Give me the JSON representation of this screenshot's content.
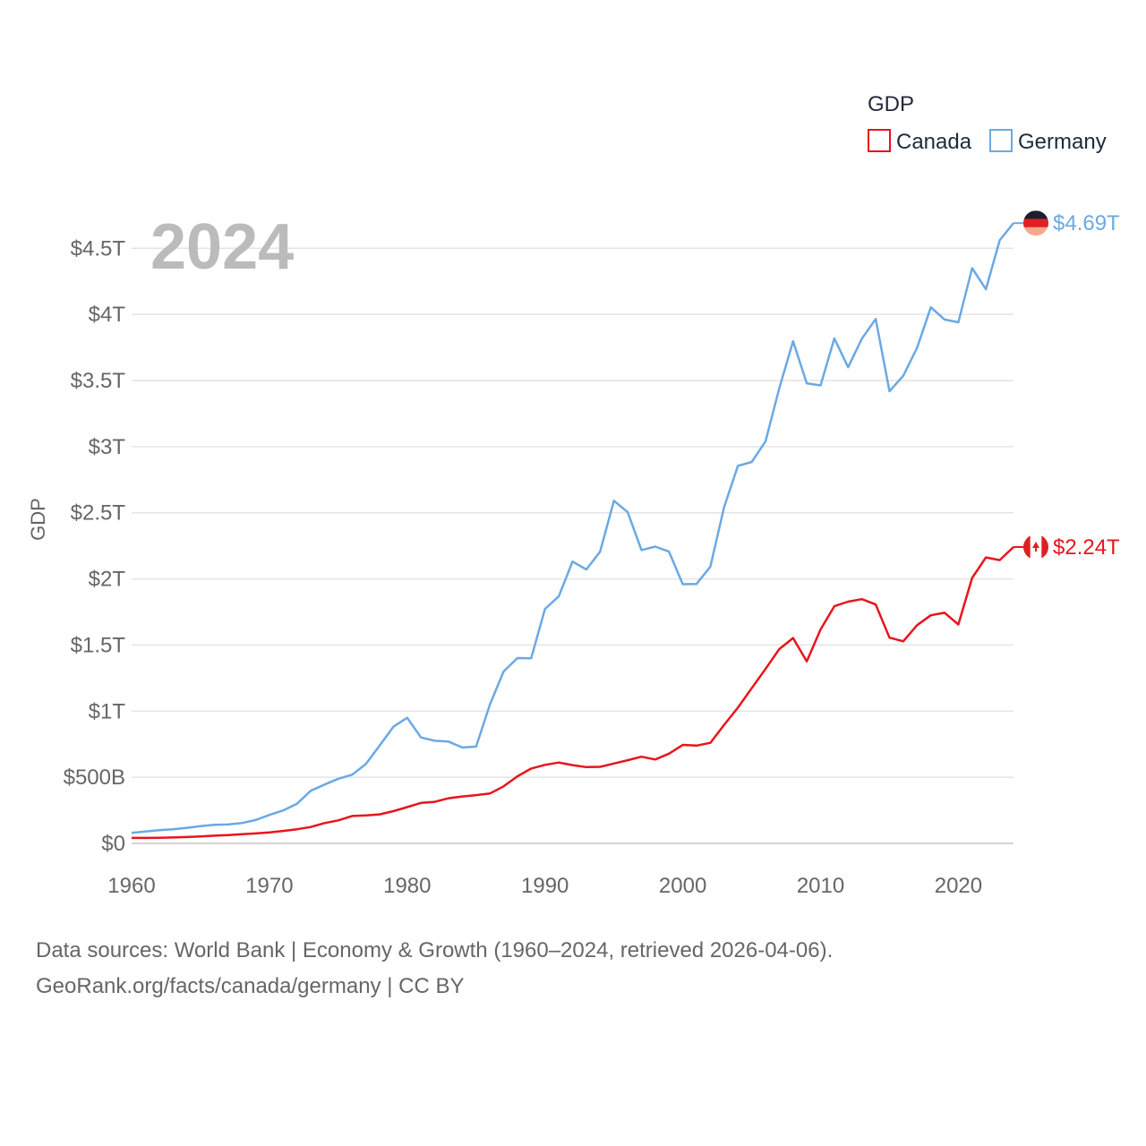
{
  "chart_data": {
    "type": "line",
    "title": "",
    "year_label": "2024",
    "xlabel": "",
    "ylabel": "GDP",
    "legend_title": "GDP",
    "legend_position": "top-right",
    "grid": true,
    "xlim": [
      1960,
      2024
    ],
    "ylim": [
      0,
      4.75
    ],
    "unit": "trillion USD",
    "x_ticks": [
      1960,
      1970,
      1980,
      1990,
      2000,
      2010,
      2020
    ],
    "x_tick_labels": [
      "1960",
      "1970",
      "1980",
      "1990",
      "2000",
      "2010",
      "2020"
    ],
    "y_ticks": [
      0,
      0.5,
      1,
      1.5,
      2,
      2.5,
      3,
      3.5,
      4,
      4.5
    ],
    "y_tick_labels": [
      "$0",
      "$500B",
      "$1T",
      "$1.5T",
      "$2T",
      "$2.5T",
      "$3T",
      "$3.5T",
      "$4T",
      "$4.5T"
    ],
    "x": [
      1960,
      1961,
      1962,
      1963,
      1964,
      1965,
      1966,
      1967,
      1968,
      1969,
      1970,
      1971,
      1972,
      1973,
      1974,
      1975,
      1976,
      1977,
      1978,
      1979,
      1980,
      1981,
      1982,
      1983,
      1984,
      1985,
      1986,
      1987,
      1988,
      1989,
      1990,
      1991,
      1992,
      1993,
      1994,
      1995,
      1996,
      1997,
      1998,
      1999,
      2000,
      2001,
      2002,
      2003,
      2004,
      2005,
      2006,
      2007,
      2008,
      2009,
      2010,
      2011,
      2012,
      2013,
      2014,
      2015,
      2016,
      2017,
      2018,
      2019,
      2020,
      2021,
      2022,
      2023,
      2024
    ],
    "series": [
      {
        "name": "Canada",
        "color": "#e8141b",
        "end_label": "$2.24T",
        "flag": "canada-flag",
        "values": [
          0.041,
          0.041,
          0.042,
          0.045,
          0.048,
          0.052,
          0.058,
          0.063,
          0.069,
          0.075,
          0.083,
          0.094,
          0.107,
          0.124,
          0.154,
          0.174,
          0.207,
          0.212,
          0.219,
          0.244,
          0.274,
          0.306,
          0.314,
          0.341,
          0.355,
          0.365,
          0.377,
          0.431,
          0.507,
          0.566,
          0.594,
          0.611,
          0.592,
          0.577,
          0.579,
          0.604,
          0.629,
          0.655,
          0.634,
          0.678,
          0.745,
          0.739,
          0.76,
          0.896,
          1.026,
          1.173,
          1.319,
          1.469,
          1.553,
          1.376,
          1.617,
          1.793,
          1.828,
          1.847,
          1.806,
          1.556,
          1.528,
          1.65,
          1.725,
          1.744,
          1.655,
          2.007,
          2.162,
          2.142,
          2.241
        ]
      },
      {
        "name": "Germany",
        "color": "#6ba9e3",
        "end_label": "$4.69T",
        "flag": "germany-flag",
        "values": [
          0.08,
          0.09,
          0.1,
          0.106,
          0.118,
          0.13,
          0.14,
          0.143,
          0.154,
          0.177,
          0.215,
          0.249,
          0.299,
          0.398,
          0.445,
          0.489,
          0.519,
          0.6,
          0.74,
          0.882,
          0.95,
          0.801,
          0.776,
          0.77,
          0.725,
          0.732,
          1.05,
          1.3,
          1.401,
          1.4,
          1.772,
          1.868,
          2.131,
          2.071,
          2.206,
          2.591,
          2.504,
          2.218,
          2.244,
          2.206,
          1.96,
          1.962,
          2.092,
          2.543,
          2.855,
          2.884,
          3.039,
          3.441,
          3.797,
          3.479,
          3.463,
          3.818,
          3.6,
          3.817,
          3.965,
          3.419,
          3.536,
          3.747,
          4.054,
          3.961,
          3.94,
          4.349,
          4.19,
          4.56,
          4.69
        ]
      }
    ]
  },
  "footer": {
    "line1": "Data sources: World Bank | Economy & Growth (1960–2024, retrieved 2026-04-06).",
    "line2": "GeoRank.org/facts/canada/germany | CC BY"
  }
}
